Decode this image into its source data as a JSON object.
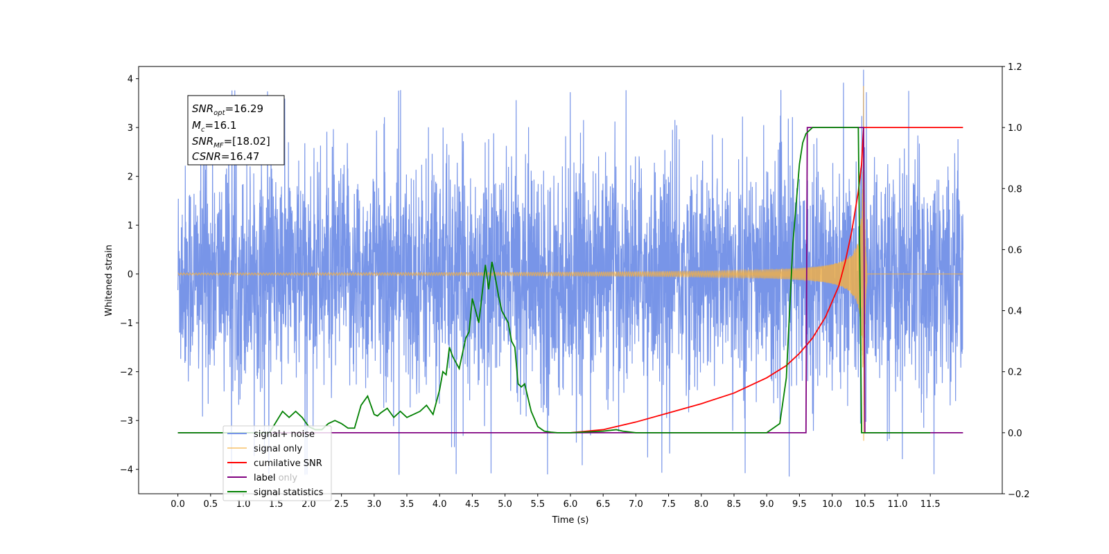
{
  "chart_data": {
    "type": "line",
    "title": "",
    "xlabel": "Time (s)",
    "ylabel": "Whitened strain",
    "ylabel_right": "",
    "xlim": [
      -0.6,
      12.6
    ],
    "ylim": [
      -4.5,
      4.25
    ],
    "ylim_right": [
      -0.2,
      1.2
    ],
    "x_ticks": [
      "0.0",
      "0.5",
      "1.0",
      "1.5",
      "2.0",
      "2.5",
      "3.0",
      "3.5",
      "4.0",
      "4.5",
      "5.0",
      "5.5",
      "6.0",
      "6.5",
      "7.0",
      "7.5",
      "8.0",
      "8.5",
      "9.0",
      "9.5",
      "10.0",
      "10.5",
      "11.0",
      "11.5"
    ],
    "y_ticks_left": [
      "4",
      "3",
      "2",
      "1",
      "0",
      "−1",
      "−2",
      "−3",
      "−4"
    ],
    "y_ticks_right": [
      "1.2",
      "1.0",
      "0.8",
      "0.6",
      "0.4",
      "0.2",
      "0.0",
      "−0.2"
    ],
    "grid": false,
    "legend_position": "lower-left",
    "annotation": {
      "lines": [
        {
          "base": "SNR",
          "sub": "opt",
          "value": "=16.29"
        },
        {
          "base": "M",
          "sub": "c",
          "value": "=16.1"
        },
        {
          "base": "SNR",
          "sub": "MF",
          "value": "=[18.02]"
        },
        {
          "base": "CSNR",
          "sub": "",
          "value": "=16.47"
        }
      ]
    },
    "series": [
      {
        "name": "signal+ noise",
        "axis": "left",
        "color": "#7895e8",
        "kind": "noise",
        "x_range": [
          0.0,
          12.0
        ],
        "spread": 2.2,
        "peak_min": -4.1,
        "peak_max": 3.75
      },
      {
        "name": "signal only",
        "axis": "left",
        "color": "#f5b041",
        "kind": "chirp",
        "x_range": [
          0.0,
          12.0
        ],
        "merger_time": 10.48,
        "peak_amplitude": 3.85,
        "start_visible": 6.0
      },
      {
        "name": "cumilative SNR",
        "axis": "right",
        "color": "#ff0000",
        "x": [
          6.0,
          6.5,
          7.0,
          7.5,
          8.0,
          8.5,
          9.0,
          9.3,
          9.5,
          9.7,
          9.9,
          10.1,
          10.2,
          10.3,
          10.4,
          10.45,
          10.48,
          10.5,
          12.0
        ],
        "y": [
          0.0,
          0.01,
          0.035,
          0.065,
          0.095,
          0.13,
          0.18,
          0.22,
          0.26,
          0.31,
          0.38,
          0.48,
          0.56,
          0.66,
          0.79,
          0.88,
          1.0,
          1.0,
          1.0
        ]
      },
      {
        "name": "label",
        "axis": "right",
        "color": "#800080",
        "x": [
          0.0,
          9.6,
          9.62,
          10.48,
          10.5,
          12.0
        ],
        "y": [
          0.0,
          0.0,
          1.0,
          1.0,
          0.0,
          0.0
        ]
      },
      {
        "name": "label only",
        "axis": "right",
        "color": "#bbbbbb",
        "hidden_line": true,
        "x": [],
        "y": []
      },
      {
        "name": "signal statistics",
        "axis": "right",
        "color": "#008000",
        "x": [
          0.0,
          1.4,
          1.6,
          1.7,
          1.8,
          1.9,
          2.0,
          2.1,
          2.2,
          2.3,
          2.4,
          2.5,
          2.6,
          2.7,
          2.8,
          2.9,
          3.0,
          3.05,
          3.1,
          3.2,
          3.3,
          3.4,
          3.5,
          3.6,
          3.7,
          3.8,
          3.9,
          4.0,
          4.05,
          4.1,
          4.15,
          4.2,
          4.3,
          4.4,
          4.45,
          4.5,
          4.6,
          4.7,
          4.75,
          4.8,
          4.85,
          4.9,
          4.95,
          5.0,
          5.05,
          5.1,
          5.15,
          5.2,
          5.25,
          5.3,
          5.4,
          5.5,
          5.6,
          5.7,
          5.8,
          6.0,
          6.5,
          6.7,
          6.8,
          7.0,
          9.0,
          9.1,
          9.2,
          9.3,
          9.4,
          9.5,
          9.55,
          9.6,
          9.7,
          9.8,
          10.0,
          10.4,
          10.45,
          10.5,
          11.5
        ],
        "y": [
          0.0,
          0.0,
          0.07,
          0.05,
          0.07,
          0.05,
          0.02,
          0.01,
          0.01,
          0.03,
          0.04,
          0.03,
          0.015,
          0.015,
          0.09,
          0.12,
          0.06,
          0.055,
          0.065,
          0.08,
          0.05,
          0.07,
          0.05,
          0.06,
          0.07,
          0.09,
          0.06,
          0.14,
          0.2,
          0.19,
          0.28,
          0.25,
          0.21,
          0.31,
          0.33,
          0.44,
          0.36,
          0.55,
          0.47,
          0.56,
          0.51,
          0.45,
          0.4,
          0.38,
          0.36,
          0.3,
          0.28,
          0.16,
          0.15,
          0.16,
          0.07,
          0.02,
          0.005,
          0.002,
          0.0,
          0.0,
          0.005,
          0.01,
          0.005,
          0.0,
          0.0,
          0.015,
          0.03,
          0.18,
          0.62,
          0.88,
          0.95,
          0.98,
          1.0,
          1.0,
          1.0,
          1.0,
          0.0,
          0.0,
          0.0
        ]
      }
    ]
  }
}
